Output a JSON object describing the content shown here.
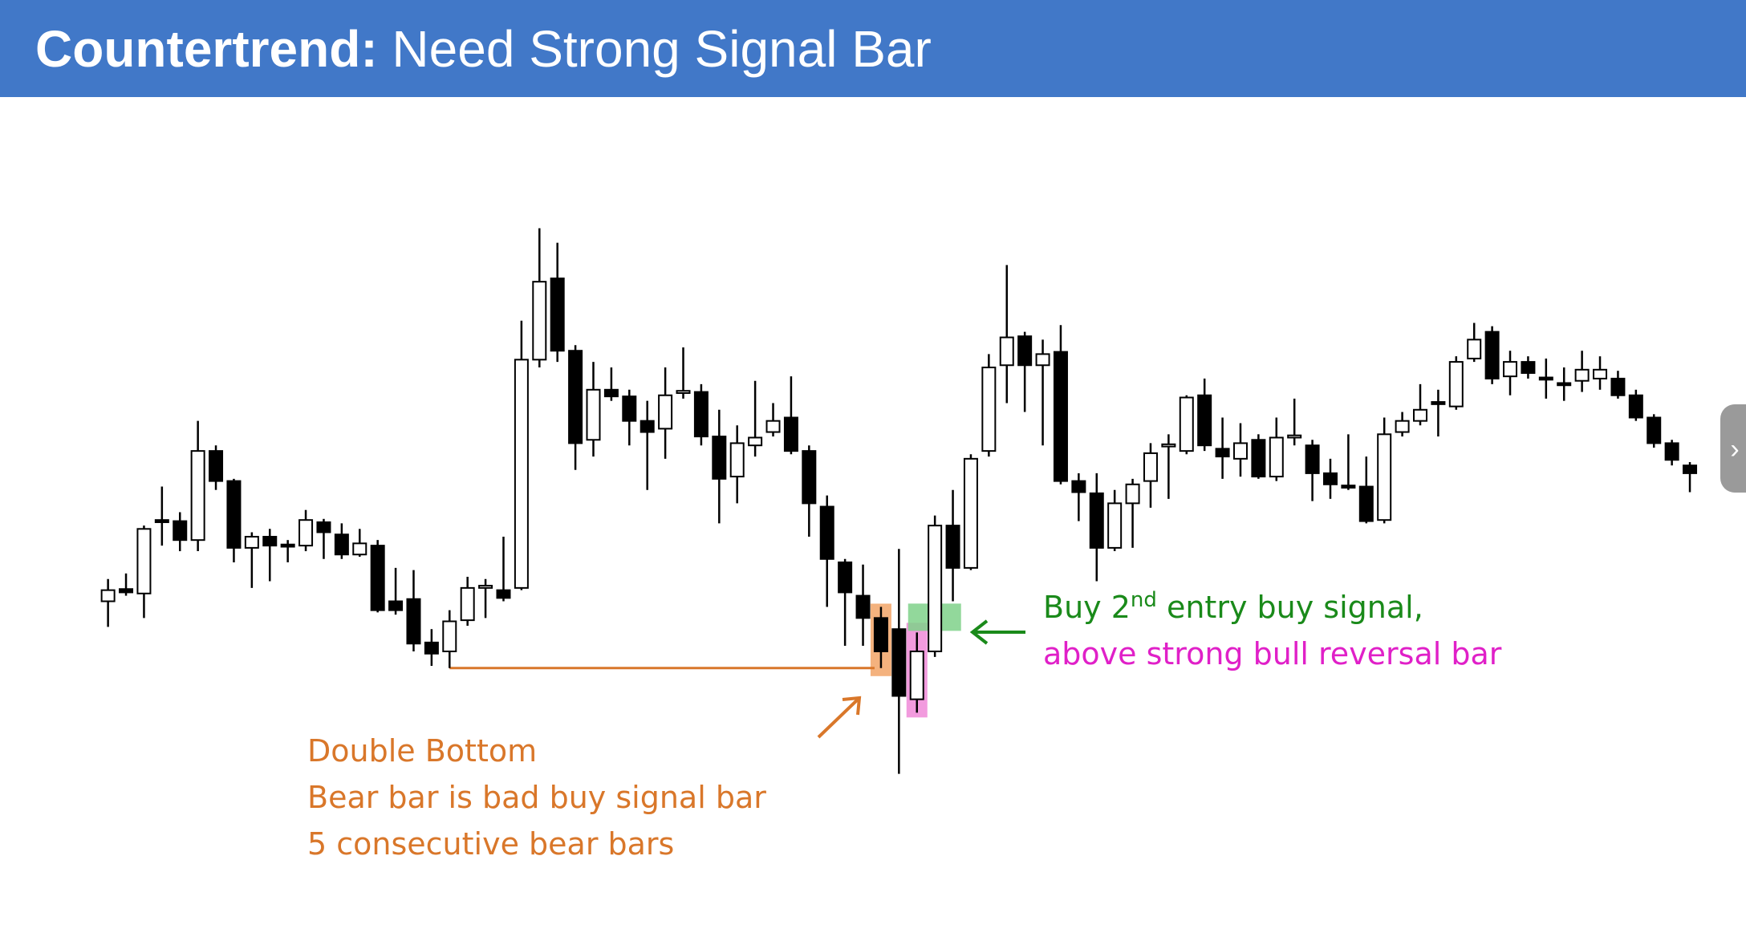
{
  "header": {
    "title_bold": "Countertrend:",
    "title_rest": "Need Strong Signal Bar"
  },
  "chart_data": {
    "type": "candlestick",
    "up_color": "#ffffff",
    "down_color": "#000000",
    "ylim": [
      0,
      500
    ],
    "open": [
      160,
      171,
      167,
      233,
      232,
      215,
      295,
      268,
      208,
      218,
      211,
      210,
      231,
      220,
      202,
      210,
      160,
      162,
      123,
      115,
      143,
      172,
      170,
      172,
      377,
      450,
      385,
      305,
      350,
      344,
      322,
      315,
      347,
      348,
      308,
      272,
      300,
      312,
      325,
      295,
      245,
      195,
      165,
      145,
      135,
      72,
      115,
      228,
      190,
      295,
      372,
      398,
      372,
      384,
      268,
      257,
      208,
      248,
      268,
      299,
      295,
      345,
      297,
      288,
      305,
      272,
      307,
      300,
      275,
      264,
      263,
      233,
      312,
      322,
      339,
      335,
      378,
      402,
      362,
      375,
      361,
      356,
      358,
      360,
      360,
      345,
      325,
      302,
      282
    ],
    "high": [
      180,
      185,
      228,
      263,
      240,
      322,
      300,
      270,
      222,
      225,
      215,
      242,
      234,
      230,
      225,
      215,
      190,
      188,
      135,
      152,
      182,
      180,
      218,
      412,
      495,
      482,
      390,
      375,
      370,
      350,
      340,
      370,
      388,
      355,
      332,
      318,
      358,
      338,
      362,
      300,
      255,
      198,
      193,
      155,
      207,
      132,
      237,
      260,
      292,
      382,
      462,
      402,
      395,
      408,
      275,
      275,
      260,
      270,
      302,
      310,
      345,
      360,
      325,
      320,
      310,
      325,
      342,
      305,
      288,
      310,
      290,
      325,
      330,
      355,
      350,
      380,
      410,
      407,
      385,
      380,
      378,
      370,
      385,
      380,
      367,
      350,
      328,
      305,
      285
    ],
    "low": [
      137,
      165,
      145,
      210,
      205,
      205,
      260,
      195,
      172,
      178,
      195,
      205,
      198,
      198,
      200,
      150,
      148,
      115,
      102,
      100,
      138,
      145,
      160,
      170,
      370,
      375,
      278,
      290,
      340,
      300,
      260,
      288,
      342,
      300,
      230,
      248,
      290,
      308,
      292,
      218,
      155,
      120,
      120,
      100,
      5,
      60,
      110,
      160,
      188,
      290,
      338,
      330,
      300,
      265,
      232,
      178,
      205,
      208,
      244,
      252,
      292,
      295,
      270,
      272,
      270,
      268,
      300,
      250,
      252,
      260,
      230,
      230,
      308,
      318,
      308,
      332,
      375,
      355,
      345,
      360,
      342,
      340,
      348,
      350,
      342,
      322,
      298,
      282,
      258
    ],
    "close": [
      170,
      168,
      225,
      231,
      215,
      295,
      268,
      208,
      218,
      210,
      209,
      233,
      222,
      202,
      212,
      152,
      152,
      122,
      113,
      142,
      172,
      174,
      163,
      377,
      447,
      385,
      302,
      350,
      344,
      322,
      312,
      345,
      349,
      308,
      270,
      302,
      307,
      322,
      295,
      248,
      198,
      168,
      145,
      115,
      75,
      115,
      228,
      190,
      288,
      370,
      397,
      372,
      382,
      268,
      258,
      208,
      248,
      265,
      293,
      301,
      343,
      300,
      290,
      302,
      272,
      307,
      309,
      275,
      265,
      262,
      232,
      310,
      322,
      332,
      337,
      375,
      395,
      360,
      375,
      365,
      359,
      354,
      368,
      368,
      345,
      325,
      302,
      287,
      275
    ],
    "annotations": {
      "double_bottom": [
        "Double Bottom",
        "Bear bar is bad buy signal bar",
        "5 consecutive bear bars"
      ],
      "buy_signal": {
        "start": "Buy 2",
        "sup": "nd",
        "end": " entry buy signal,"
      },
      "reversal": "above strong bull reversal bar"
    }
  },
  "side_tab": {
    "icon": "›"
  }
}
